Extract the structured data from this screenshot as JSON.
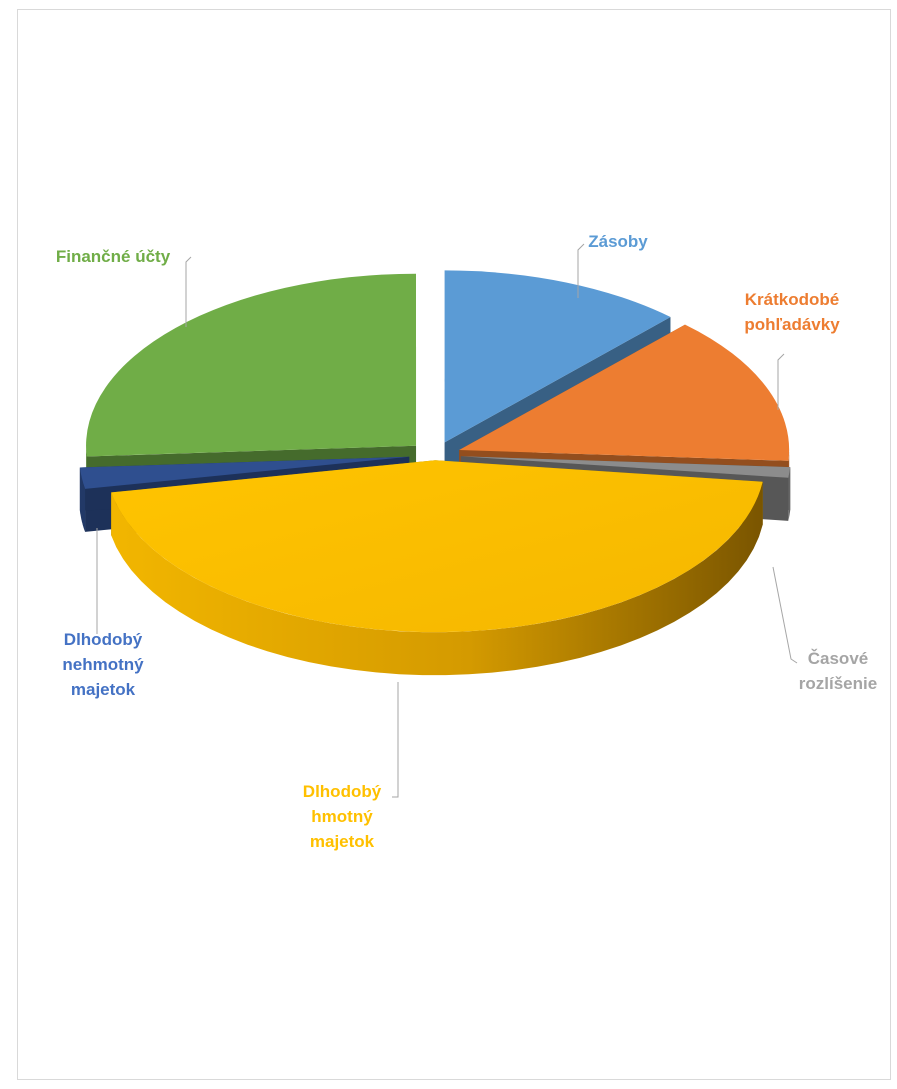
{
  "chart_data": {
    "type": "pie",
    "title": "",
    "legend": "none",
    "style": "3d-exploded",
    "categories": [
      "Zásoby",
      "Krátkodobé pohľadávky",
      "Časové rozlíšenie",
      "Dlhodobý hmotný majetok",
      "Dlhodobý nehmotný majetok",
      "Finančné účty"
    ],
    "values": [
      12,
      14,
      1,
      45,
      2,
      26
    ],
    "colors": [
      "#5b9bd5",
      "#ed7d31",
      "#8c8c8c",
      "#ffc000",
      "#2f4f8f",
      "#70ad47"
    ],
    "label_colors": [
      "#5b9bd5",
      "#ed7d31",
      "#a5a5a5",
      "#ffc000",
      "#4472c4",
      "#70ad47"
    ],
    "label_lines": [
      [
        "Zásoby"
      ],
      [
        "Krátkodobé",
        "pohľadávky"
      ],
      [
        "Časové",
        "rozlíšenie"
      ],
      [
        "Dlhodobý",
        "hmotný",
        "majetok"
      ],
      [
        "Dlhodobý",
        "nehmotný",
        "majetok"
      ],
      [
        "Finančné účty"
      ]
    ]
  }
}
